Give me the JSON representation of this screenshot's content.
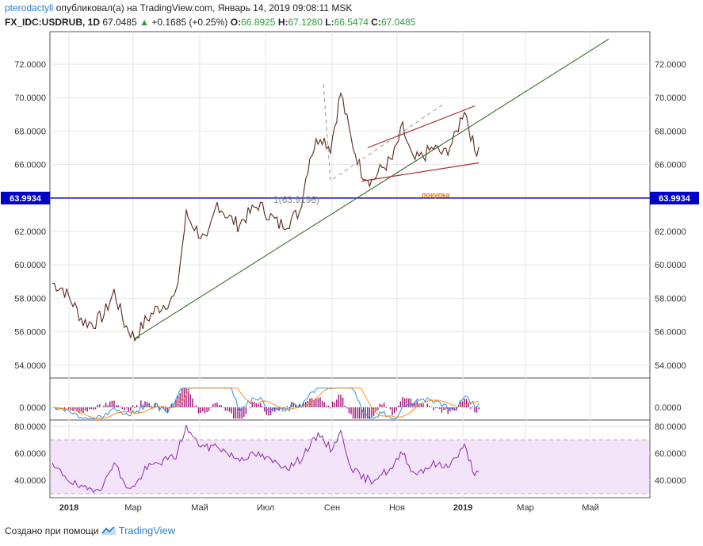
{
  "header": {
    "user": "pterodactyll",
    "published": "опубликовал(а) на TradingView.com, Январь 14, 2019 09:08:11 MSK",
    "symbol": "FX_IDC:USDRUB, 1D",
    "last": "67.0485",
    "arrow": "▲",
    "change": "+0.1685 (+0.25%)",
    "o_label": "O:",
    "o": "66.8925",
    "h_label": "H:",
    "h": "67.1280",
    "l_label": "L:",
    "l": "66.5474",
    "c_label": "C:",
    "c": "67.0485"
  },
  "footer": {
    "created": "Создано при помощи",
    "brand": "TradingView"
  },
  "colors": {
    "price": "#5a2a1a",
    "trend": "#3a6b2a",
    "channel": "#a52a2a",
    "hline": "#0000c8",
    "macd": "#2f8fe0",
    "signal": "#ff8c1a",
    "hist": "#a0107a",
    "rsi": "#8a2aa8",
    "rsi_band": "#f4e4fa"
  },
  "chart_data": [
    {
      "type": "line",
      "name": "price",
      "x_ticks": [
        "2018",
        "Мар",
        "Май",
        "Июл",
        "Сен",
        "Ноя",
        "2019",
        "Мар",
        "Май"
      ],
      "ylim": [
        53,
        74
      ],
      "y_ticks": [
        "54.0000",
        "56.0000",
        "58.0000",
        "60.0000",
        "62.0000",
        "64.0000",
        "66.0000",
        "68.0000",
        "70.0000",
        "72.0000"
      ],
      "hline_label": "63.9934",
      "hline_value": 63.9934,
      "fib_label": "1(63.9196)",
      "annotation": "покупка",
      "keypoints": [
        [
          0,
          58.9
        ],
        [
          5,
          58.6
        ],
        [
          10,
          57.7
        ],
        [
          15,
          56.6
        ],
        [
          20,
          56.5
        ],
        [
          25,
          57.0
        ],
        [
          30,
          58.4
        ],
        [
          35,
          56.5
        ],
        [
          40,
          55.6
        ],
        [
          45,
          56.6
        ],
        [
          50,
          57.3
        ],
        [
          55,
          57.7
        ],
        [
          60,
          58.1
        ],
        [
          65,
          63.0
        ],
        [
          70,
          62.1
        ],
        [
          75,
          61.3
        ],
        [
          80,
          63.7
        ],
        [
          85,
          62.9
        ],
        [
          90,
          62.4
        ],
        [
          95,
          63.0
        ],
        [
          100,
          63.6
        ],
        [
          105,
          63.0
        ],
        [
          110,
          62.4
        ],
        [
          115,
          62.6
        ],
        [
          120,
          63.2
        ],
        [
          125,
          66.5
        ],
        [
          130,
          67.8
        ],
        [
          135,
          67.0
        ],
        [
          140,
          70.3
        ],
        [
          145,
          67.5
        ],
        [
          150,
          65.6
        ],
        [
          155,
          65.0
        ],
        [
          160,
          65.8
        ],
        [
          165,
          66.3
        ],
        [
          170,
          68.2
        ],
        [
          175,
          66.2
        ],
        [
          180,
          66.5
        ],
        [
          185,
          67.0
        ],
        [
          190,
          66.6
        ],
        [
          195,
          67.5
        ],
        [
          200,
          69.4
        ],
        [
          205,
          66.8
        ],
        [
          207,
          67.05
        ]
      ],
      "trendline": [
        [
          40,
          55.6
        ],
        [
          270,
          73.5
        ]
      ],
      "channel_upper": [
        [
          80,
          66.1
        ],
        [
          240,
          69.0
        ]
      ],
      "channel_lower": [
        [
          80,
          64.5
        ],
        [
          240,
          66.1
        ]
      ]
    },
    {
      "type": "line",
      "name": "MACD",
      "y_ticks": [
        "0.0000"
      ],
      "ylim": [
        -1.5,
        2.5
      ]
    },
    {
      "type": "line",
      "name": "RSI",
      "y_ticks": [
        "40.0000",
        "60.0000",
        "80.0000"
      ],
      "ylim": [
        20,
        82
      ],
      "band": [
        30,
        70
      ],
      "keypoints": [
        [
          0,
          50
        ],
        [
          5,
          45
        ],
        [
          10,
          38
        ],
        [
          15,
          33
        ],
        [
          20,
          34
        ],
        [
          25,
          36
        ],
        [
          30,
          55
        ],
        [
          35,
          36
        ],
        [
          40,
          35
        ],
        [
          45,
          48
        ],
        [
          50,
          52
        ],
        [
          55,
          55
        ],
        [
          60,
          58
        ],
        [
          65,
          80
        ],
        [
          70,
          68
        ],
        [
          75,
          64
        ],
        [
          80,
          66
        ],
        [
          85,
          60
        ],
        [
          90,
          56
        ],
        [
          95,
          58
        ],
        [
          100,
          59
        ],
        [
          105,
          55
        ],
        [
          110,
          52
        ],
        [
          115,
          50
        ],
        [
          120,
          55
        ],
        [
          125,
          66
        ],
        [
          130,
          74
        ],
        [
          135,
          63
        ],
        [
          140,
          75
        ],
        [
          145,
          50
        ],
        [
          150,
          42
        ],
        [
          155,
          40
        ],
        [
          160,
          45
        ],
        [
          165,
          48
        ],
        [
          170,
          62
        ],
        [
          175,
          45
        ],
        [
          180,
          48
        ],
        [
          185,
          52
        ],
        [
          190,
          50
        ],
        [
          195,
          55
        ],
        [
          200,
          65
        ],
        [
          205,
          45
        ],
        [
          207,
          46
        ]
      ]
    }
  ]
}
